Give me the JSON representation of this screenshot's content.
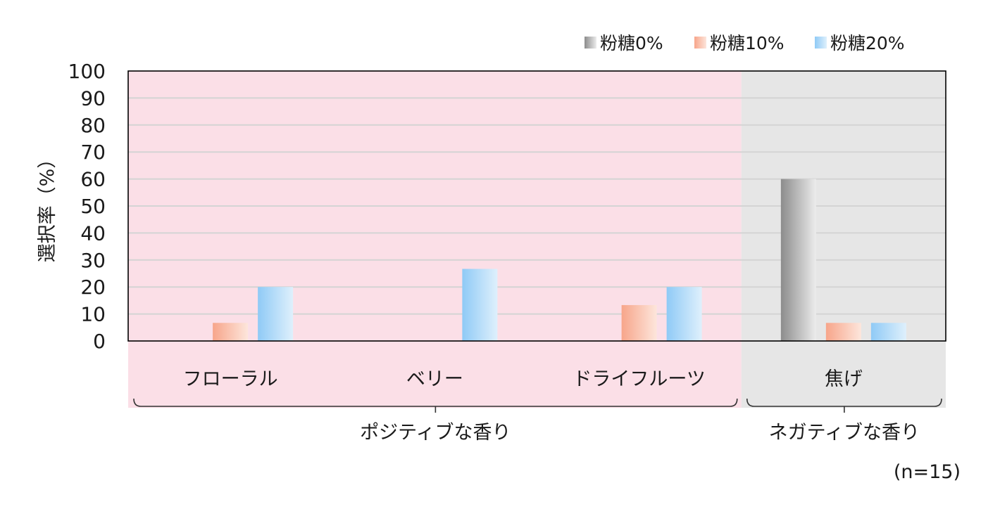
{
  "chart_data": {
    "type": "bar",
    "ylabel": "選択率（%）",
    "ylim": [
      0,
      100
    ],
    "yticks": [
      0,
      10,
      20,
      30,
      40,
      50,
      60,
      70,
      80,
      90,
      100
    ],
    "grid": true,
    "legend_position": "top-right",
    "categories": [
      "フローラル",
      "ベリー",
      "ドライフルーツ",
      "焦げ"
    ],
    "groups": [
      {
        "label": "ポジティブな香り",
        "categories": [
          "フローラル",
          "ベリー",
          "ドライフルーツ"
        ],
        "background": "#fbdfe7"
      },
      {
        "label": "ネガティブな香り",
        "categories": [
          "焦げ"
        ],
        "background": "#e6e6e6"
      }
    ],
    "series": [
      {
        "name": "粉糖0%",
        "values": [
          0,
          0,
          0,
          60
        ],
        "color_from": "#8c8c8c",
        "color_to": "#ececec"
      },
      {
        "name": "粉糖10%",
        "values": [
          6.7,
          0,
          13.3,
          6.7
        ],
        "color_from": "#f7a58a",
        "color_to": "#fde6dc"
      },
      {
        "name": "粉糖20%",
        "values": [
          20,
          26.7,
          20,
          6.7
        ],
        "color_from": "#8fcaf6",
        "color_to": "#dff0fc"
      }
    ],
    "note": "(n=15)"
  }
}
